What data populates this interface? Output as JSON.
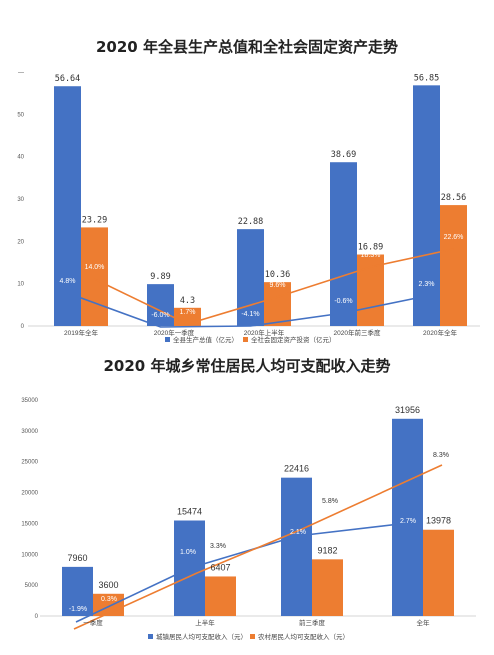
{
  "charts": [
    {
      "type": "bar",
      "title": "2020 年全县生产总值和全社会固定资产走势",
      "categories": [
        "2019年全年",
        "2020年一季度",
        "2020年上半年",
        "2020年前三季度",
        "2020年全年"
      ],
      "ylim": [
        0,
        60
      ],
      "yticks": [
        "0",
        "10",
        "20",
        "30",
        "40",
        "50",
        "—"
      ],
      "series": [
        {
          "name": "全县生产总值（亿元）",
          "values": [
            56.64,
            9.89,
            22.88,
            38.69,
            56.85
          ],
          "labels": [
            "56.64",
            "9.89",
            "22.88",
            "38.69",
            "56.85"
          ],
          "color": "#4472C4"
        },
        {
          "name": "全社会固定资产投资（亿元）",
          "values": [
            23.29,
            4.3,
            10.36,
            16.89,
            28.56
          ],
          "labels": [
            "23.29",
            "4.3",
            "10.36",
            "16.89",
            "28.56"
          ],
          "color": "#ED7D31"
        }
      ],
      "growth_lines": [
        {
          "name": "生产总值增速",
          "labels": [
            "4.8%",
            "-6.0%",
            "-4.1%",
            "-0.6%",
            "2.3%"
          ],
          "color": "#4472C4"
        },
        {
          "name": "固定资产投资增速",
          "labels": [
            "14.0%",
            "1.7%",
            "9.6%",
            "18.3%",
            "22.6%"
          ],
          "color": "#ED7D31"
        }
      ]
    },
    {
      "type": "bar",
      "title": "2020 年城乡常住居民人均可支配收入走势",
      "categories": [
        "一季度",
        "上半年",
        "前三季度",
        "全年"
      ],
      "ylim": [
        0,
        35000
      ],
      "yticks": [
        "0",
        "5000",
        "10000",
        "15000",
        "20000",
        "25000",
        "30000",
        "35000"
      ],
      "series": [
        {
          "name": "城镇居民人均可支配收入（元）",
          "values": [
            7960,
            15474,
            22416,
            31956
          ],
          "labels": [
            "7960",
            "15474",
            "22416",
            "31956"
          ],
          "color": "#4472C4"
        },
        {
          "name": "农村居民人均可支配收入（元）",
          "values": [
            3600,
            6407,
            9182,
            13978
          ],
          "labels": [
            "3600",
            "6407",
            "9182",
            "13978"
          ],
          "color": "#ED7D31"
        }
      ],
      "growth_lines": [
        {
          "name": "城镇居民收入增速",
          "labels": [
            "-1.9%",
            "1.0%",
            "2.1%",
            "2.7%"
          ],
          "color": "#4472C4"
        },
        {
          "name": "农村居民收入增速",
          "labels": [
            "0.3%",
            "3.3%",
            "5.8%",
            "8.3%"
          ],
          "color": "#ED7D31"
        }
      ]
    }
  ],
  "chart_data": [
    {
      "type": "bar",
      "title": "2020 年全县生产总值和全社会固定资产走势",
      "categories": [
        "2019年全年",
        "2020年一季度",
        "2020年上半年",
        "2020年前三季度",
        "2020年全年"
      ],
      "series": [
        {
          "name": "全县生产总值（亿元）",
          "values": [
            56.64,
            9.89,
            22.88,
            38.69,
            56.85
          ]
        },
        {
          "name": "全社会固定资产投资（亿元）",
          "values": [
            23.29,
            4.3,
            10.36,
            16.89,
            28.56
          ]
        }
      ],
      "line_labels": [
        [
          "4.8%",
          "-6.0%",
          "-4.1%",
          "-0.6%",
          "2.3%"
        ],
        [
          "14.0%",
          "1.7%",
          "9.6%",
          "18.3%",
          "22.6%"
        ]
      ],
      "ylim": [
        0,
        60
      ]
    },
    {
      "type": "bar",
      "title": "2020 年城乡常住居民人均可支配收入走势",
      "categories": [
        "一季度",
        "上半年",
        "前三季度",
        "全年"
      ],
      "series": [
        {
          "name": "城镇居民人均可支配收入（元）",
          "values": [
            7960,
            15474,
            22416,
            31956
          ]
        },
        {
          "name": "农村居民人均可支配收入（元）",
          "values": [
            3600,
            6407,
            9182,
            13978
          ]
        }
      ],
      "line_labels": [
        [
          "-1.9%",
          "1.0%",
          "2.1%",
          "2.7%"
        ],
        [
          "0.3%",
          "3.3%",
          "5.8%",
          "8.3%"
        ]
      ],
      "ylim": [
        0,
        35000
      ]
    }
  ]
}
